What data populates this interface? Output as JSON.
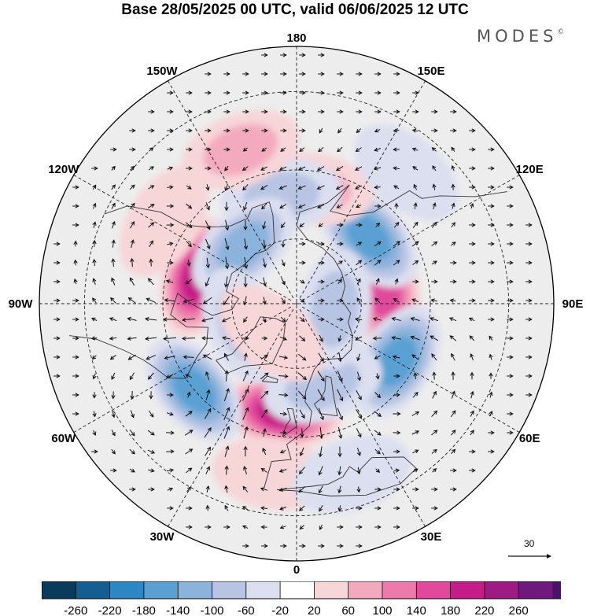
{
  "title": "Base 28/05/2025 00 UTC, valid 06/06/2025 12 UTC",
  "logo": {
    "text": "MODES",
    "mark": "©"
  },
  "projection": "north-polar-stereographic",
  "longitude_labels": [
    "180",
    "150E",
    "120E",
    "90E",
    "60E",
    "30E",
    "0",
    "30W",
    "60W",
    "90W",
    "120W",
    "150W"
  ],
  "reference_vector": {
    "value": "30"
  },
  "colorbar": {
    "tick_labels": [
      "-260",
      "-220",
      "-180",
      "-140",
      "-100",
      "-60",
      "-20",
      "20",
      "60",
      "100",
      "140",
      "180",
      "220",
      "260"
    ],
    "colors": [
      "#0a3a5c",
      "#135f92",
      "#2f86c4",
      "#5aa0d3",
      "#8bb3dc",
      "#b7c4e3",
      "#dcdff0",
      "#ffffff",
      "#f7d6d8",
      "#f4aabe",
      "#ee7aab",
      "#e14a9c",
      "#c51d87",
      "#a01a84",
      "#6f187e",
      "#4b1269"
    ]
  },
  "anomalies": [
    {
      "name": "canada-high",
      "lon": -105,
      "lat": 59,
      "value": 200
    },
    {
      "name": "north-atlantic-high",
      "lon": -8,
      "lat": 57,
      "value": 190
    },
    {
      "name": "siberia-high",
      "lon": 98,
      "lat": 63,
      "value": 160
    },
    {
      "name": "central-asia-low",
      "lon": 60,
      "lat": 55,
      "value": -160
    },
    {
      "name": "labrador-low",
      "lon": -50,
      "lat": 50,
      "value": -170
    },
    {
      "name": "east-siberia-low",
      "lon": 133,
      "lat": 60,
      "value": -150
    },
    {
      "name": "bering-high",
      "lon": 172,
      "lat": 55,
      "value": 60
    },
    {
      "name": "chukchi-low",
      "lon": -172,
      "lat": 57,
      "value": -60
    },
    {
      "name": "alaska-low",
      "lon": -137,
      "lat": 66,
      "value": -100
    },
    {
      "name": "north-pacific-high",
      "lon": -160,
      "lat": 42,
      "value": 60
    },
    {
      "name": "scandinavia-low",
      "lon": 18,
      "lat": 64,
      "value": -60
    },
    {
      "name": "kara-low",
      "lon": 82,
      "lat": 78,
      "value": -60
    },
    {
      "name": "iberia-high",
      "lon": -8,
      "lat": 40,
      "value": 40
    },
    {
      "name": "pacific-nw-high",
      "lon": -122,
      "lat": 44,
      "value": 40
    },
    {
      "name": "baffin-low",
      "lon": -68,
      "lat": 72,
      "value": -60
    },
    {
      "name": "mediterranean-low",
      "lon": 18,
      "lat": 38,
      "value": -40
    },
    {
      "name": "japan-low",
      "lon": 140,
      "lat": 40,
      "value": -30
    },
    {
      "name": "greenland-high",
      "lon": -40,
      "lat": 78,
      "value": 30
    }
  ]
}
